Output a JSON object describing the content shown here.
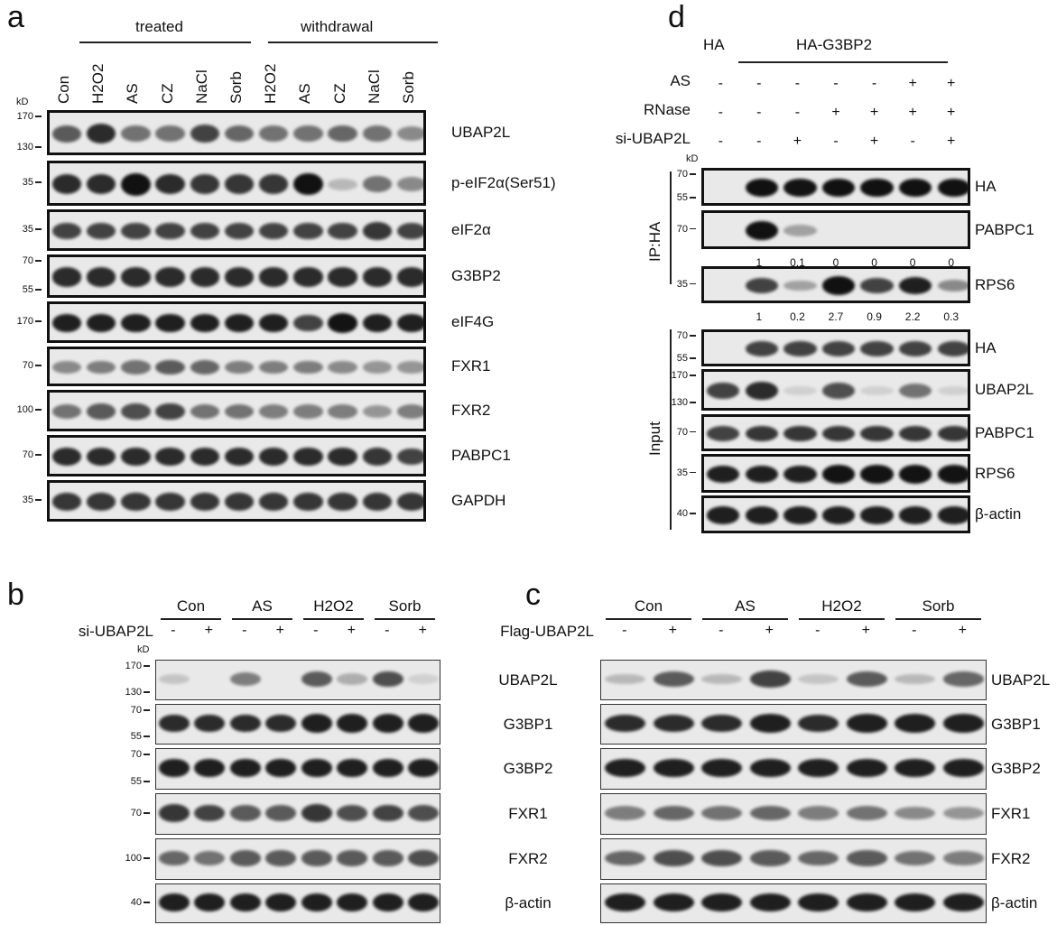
{
  "panels": {
    "a": {
      "letter": "a",
      "groups": [
        "treated",
        "withdrawal"
      ],
      "lanes": [
        "Con",
        "H2O2",
        "AS",
        "CZ",
        "NaCl",
        "Sorb",
        "H2O2",
        "AS",
        "CZ",
        "NaCl",
        "Sorb"
      ],
      "kd": "kD",
      "blots": [
        {
          "label": "UBAP2L",
          "markers": [
            "170",
            "130"
          ],
          "intensity": [
            0.6,
            0.8,
            0.5,
            0.5,
            0.7,
            0.55,
            0.5,
            0.5,
            0.55,
            0.5,
            0.4
          ]
        },
        {
          "label": "p-eIF2α(Ser51)",
          "markers": [
            "35"
          ],
          "intensity": [
            0.8,
            0.8,
            1,
            0.8,
            0.75,
            0.75,
            0.75,
            0.95,
            0.2,
            0.5,
            0.4
          ]
        },
        {
          "label": "eIF2α",
          "markers": [
            "35"
          ],
          "intensity": [
            0.7,
            0.7,
            0.7,
            0.7,
            0.7,
            0.7,
            0.7,
            0.7,
            0.7,
            0.75,
            0.7
          ]
        },
        {
          "label": "G3BP2",
          "markers": [
            "70",
            "55"
          ],
          "intensity": [
            0.8,
            0.8,
            0.8,
            0.8,
            0.8,
            0.8,
            0.8,
            0.8,
            0.8,
            0.8,
            0.8
          ]
        },
        {
          "label": "eIF4G",
          "markers": [
            "170"
          ],
          "intensity": [
            0.85,
            0.85,
            0.85,
            0.85,
            0.85,
            0.85,
            0.85,
            0.7,
            0.9,
            0.85,
            0.85
          ]
        },
        {
          "label": "FXR1",
          "markers": [
            "70"
          ],
          "intensity": [
            0.4,
            0.45,
            0.5,
            0.6,
            0.55,
            0.45,
            0.45,
            0.45,
            0.4,
            0.35,
            0.35
          ]
        },
        {
          "label": "FXR2",
          "markers": [
            "100"
          ],
          "intensity": [
            0.5,
            0.6,
            0.65,
            0.7,
            0.5,
            0.5,
            0.45,
            0.45,
            0.45,
            0.35,
            0.45
          ]
        },
        {
          "label": "PABPC1",
          "markers": [
            "70"
          ],
          "intensity": [
            0.8,
            0.8,
            0.8,
            0.8,
            0.8,
            0.8,
            0.8,
            0.8,
            0.8,
            0.75,
            0.7
          ]
        },
        {
          "label": "GAPDH",
          "markers": [
            "35"
          ],
          "intensity": [
            0.75,
            0.75,
            0.75,
            0.75,
            0.75,
            0.75,
            0.75,
            0.75,
            0.75,
            0.75,
            0.75
          ]
        }
      ]
    },
    "b": {
      "letter": "b",
      "groups": [
        "Con",
        "AS",
        "H2O2",
        "Sorb"
      ],
      "row_label": "si-UBAP2L",
      "signs": [
        "-",
        "+",
        "-",
        "+",
        "-",
        "+",
        "-",
        "+"
      ],
      "kd": "kD",
      "blots": [
        {
          "label": "UBAP2L",
          "markers": [
            "170",
            "130"
          ],
          "intensity": [
            0.15,
            0,
            0.45,
            0,
            0.6,
            0.25,
            0.65,
            0.1
          ]
        },
        {
          "label": "G3BP1",
          "markers": [
            "70",
            "55"
          ],
          "intensity": [
            0.8,
            0.8,
            0.8,
            0.8,
            0.85,
            0.85,
            0.85,
            0.85
          ]
        },
        {
          "label": "G3BP2",
          "markers": [
            "70",
            "55"
          ],
          "intensity": [
            0.85,
            0.85,
            0.85,
            0.85,
            0.85,
            0.85,
            0.85,
            0.85
          ]
        },
        {
          "label": "FXR1",
          "markers": [
            "70"
          ],
          "intensity": [
            0.75,
            0.7,
            0.6,
            0.6,
            0.75,
            0.65,
            0.7,
            0.65
          ]
        },
        {
          "label": "FXR2",
          "markers": [
            "100"
          ],
          "intensity": [
            0.55,
            0.5,
            0.6,
            0.6,
            0.6,
            0.6,
            0.6,
            0.65
          ]
        },
        {
          "label": "β-actin",
          "markers": [
            "40"
          ],
          "intensity": [
            0.85,
            0.85,
            0.85,
            0.85,
            0.85,
            0.85,
            0.85,
            0.85
          ]
        }
      ]
    },
    "c": {
      "letter": "c",
      "groups": [
        "Con",
        "AS",
        "H2O2",
        "Sorb"
      ],
      "row_label": "Flag-UBAP2L",
      "signs": [
        "-",
        "+",
        "-",
        "+",
        "-",
        "+",
        "-",
        "+"
      ],
      "blots": [
        {
          "label": "UBAP2L",
          "intensity": [
            0.2,
            0.6,
            0.2,
            0.7,
            0.15,
            0.6,
            0.2,
            0.55
          ]
        },
        {
          "label": "G3BP1",
          "intensity": [
            0.8,
            0.8,
            0.8,
            0.85,
            0.8,
            0.85,
            0.85,
            0.85
          ]
        },
        {
          "label": "G3BP2",
          "intensity": [
            0.85,
            0.85,
            0.85,
            0.85,
            0.85,
            0.85,
            0.85,
            0.85
          ]
        },
        {
          "label": "FXR1",
          "intensity": [
            0.45,
            0.55,
            0.5,
            0.55,
            0.45,
            0.5,
            0.4,
            0.35
          ]
        },
        {
          "label": "FXR2",
          "intensity": [
            0.55,
            0.65,
            0.65,
            0.6,
            0.55,
            0.6,
            0.5,
            0.45
          ]
        },
        {
          "label": "β-actin",
          "intensity": [
            0.85,
            0.85,
            0.85,
            0.85,
            0.85,
            0.85,
            0.85,
            0.85
          ]
        }
      ]
    },
    "d": {
      "letter": "d",
      "ctrl": "HA",
      "construct": "HA-G3BP2",
      "kd": "kD",
      "rows": [
        {
          "label": "AS",
          "signs": [
            "-",
            "-",
            "-",
            "-",
            "-",
            "+",
            "+"
          ]
        },
        {
          "label": "RNase",
          "signs": [
            "-",
            "-",
            "-",
            "+",
            "+",
            "+",
            "+"
          ]
        },
        {
          "label": "si-UBAP2L",
          "signs": [
            "-",
            "-",
            "+",
            "-",
            "+",
            "-",
            "+"
          ]
        }
      ],
      "ip_label": "IP:HA",
      "input_label": "Input",
      "blots": [
        {
          "label": "HA",
          "markers": [
            "70",
            "55"
          ],
          "intensity": [
            0,
            0.95,
            0.9,
            0.95,
            0.95,
            0.95,
            0.95
          ]
        },
        {
          "label": "PABPC1",
          "markers": [
            "70"
          ],
          "intensity": [
            0,
            1,
            0.3,
            0,
            0,
            0,
            0
          ],
          "quant": [
            "1",
            "0.1",
            "0",
            "0",
            "0",
            "0"
          ]
        },
        {
          "label": "RPS6",
          "markers": [
            "35"
          ],
          "intensity": [
            0,
            0.7,
            0.3,
            1,
            0.7,
            0.85,
            0.4
          ],
          "quant": [
            "1",
            "0.2",
            "2.7",
            "0.9",
            "2.2",
            "0.3"
          ]
        },
        {
          "label": "HA",
          "markers": [
            "70",
            "55"
          ],
          "intensity": [
            0,
            0.7,
            0.7,
            0.7,
            0.7,
            0.7,
            0.7
          ]
        },
        {
          "label": "UBAP2L",
          "markers": [
            "170",
            "130"
          ],
          "intensity": [
            0.7,
            0.8,
            0.1,
            0.65,
            0.1,
            0.5,
            0.1
          ]
        },
        {
          "label": "PABPC1",
          "markers": [
            "70"
          ],
          "intensity": [
            0.7,
            0.75,
            0.75,
            0.75,
            0.75,
            0.75,
            0.75
          ]
        },
        {
          "label": "RPS6",
          "markers": [
            "35"
          ],
          "intensity": [
            0.85,
            0.85,
            0.85,
            0.9,
            0.9,
            0.9,
            0.9
          ]
        },
        {
          "label": "β-actin",
          "markers": [
            "40"
          ],
          "intensity": [
            0.85,
            0.85,
            0.85,
            0.85,
            0.85,
            0.85,
            0.85
          ]
        }
      ]
    }
  }
}
